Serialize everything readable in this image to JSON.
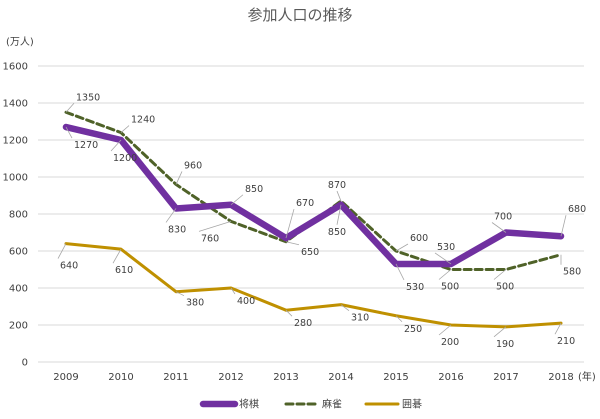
{
  "chart_data": {
    "type": "line",
    "title": "参加人口の推移",
    "ylabel": "(万人)",
    "xlabel": "(年)",
    "ylim": [
      0,
      1600
    ],
    "yticks": [
      0,
      200,
      400,
      600,
      800,
      1000,
      1200,
      1400,
      1600
    ],
    "grid": true,
    "legend_position": "bottom",
    "categories": [
      "2009",
      "2010",
      "2011",
      "2012",
      "2013",
      "2014",
      "2015",
      "2016",
      "2017",
      "2018"
    ],
    "series": [
      {
        "name": "将棋",
        "color": "#7030a0",
        "style": "solid-thick",
        "values": [
          1270,
          1200,
          830,
          850,
          670,
          850,
          530,
          530,
          700,
          680
        ]
      },
      {
        "name": "麻雀",
        "color": "#4f6228",
        "style": "dashed",
        "values": [
          1350,
          1240,
          960,
          760,
          650,
          870,
          600,
          500,
          500,
          580
        ]
      },
      {
        "name": "囲碁",
        "color": "#bf9000",
        "style": "solid",
        "values": [
          640,
          610,
          380,
          400,
          280,
          310,
          250,
          200,
          190,
          210
        ]
      }
    ]
  }
}
